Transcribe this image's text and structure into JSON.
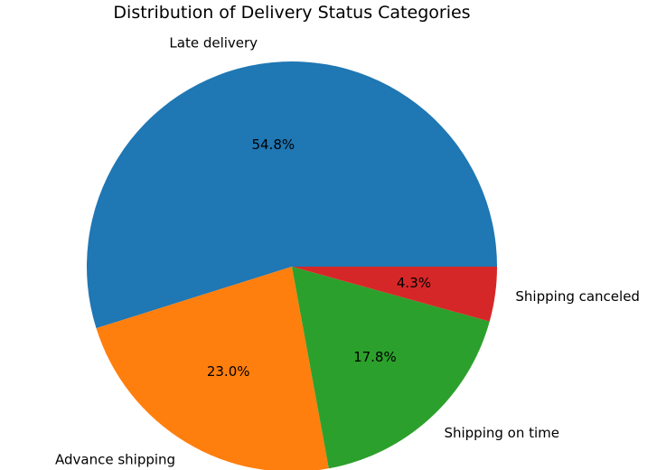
{
  "chart_data": {
    "type": "pie",
    "title": "Distribution of Delivery Status Categories",
    "slices": [
      {
        "label": "Late delivery",
        "value": 54.8,
        "pct_label": "54.8%",
        "color": "#1f77b4"
      },
      {
        "label": "Advance shipping",
        "value": 23.0,
        "pct_label": "23.0%",
        "color": "#ff7f0e"
      },
      {
        "label": "Shipping on time",
        "value": 17.8,
        "pct_label": "17.8%",
        "color": "#2ca02c"
      },
      {
        "label": "Shipping canceled",
        "value": 4.3,
        "pct_label": "4.3%",
        "color": "#d62728"
      }
    ],
    "start_angle_deg": 0,
    "direction": "counterclockwise",
    "legend": "none"
  }
}
